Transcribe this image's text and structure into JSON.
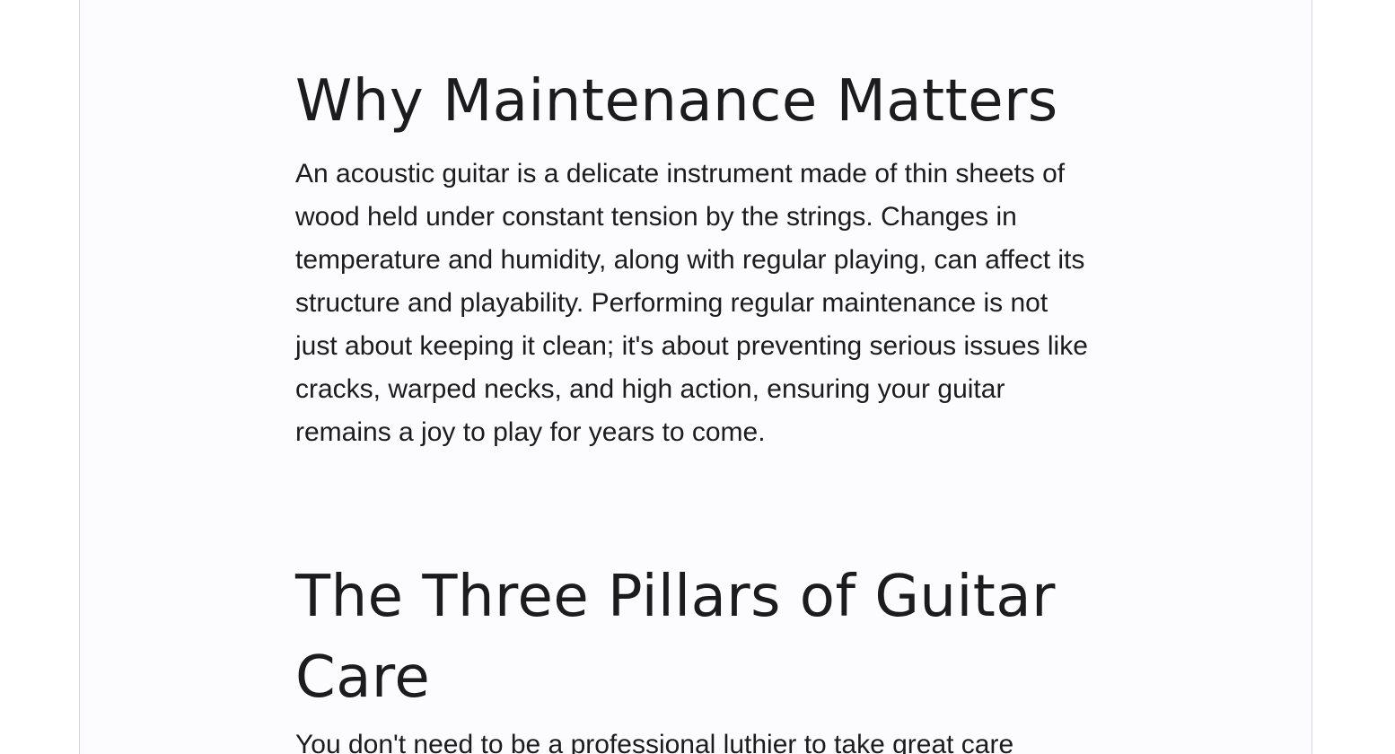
{
  "article": {
    "sections": [
      {
        "heading": "Why Maintenance Matters",
        "paragraph": "An acoustic guitar is a delicate instrument made of thin sheets of wood held under constant tension by the strings. Changes in temperature and humidity, along with regular playing, can affect its structure and playability. Performing regular maintenance is not just about keeping it clean; it's about preventing serious issues like cracks, warped necks, and high action, ensuring your guitar remains a joy to play for years to come."
      },
      {
        "heading": "The Three Pillars of Guitar Care",
        "paragraph": "You don't need to be a professional luthier to take great care"
      }
    ]
  }
}
